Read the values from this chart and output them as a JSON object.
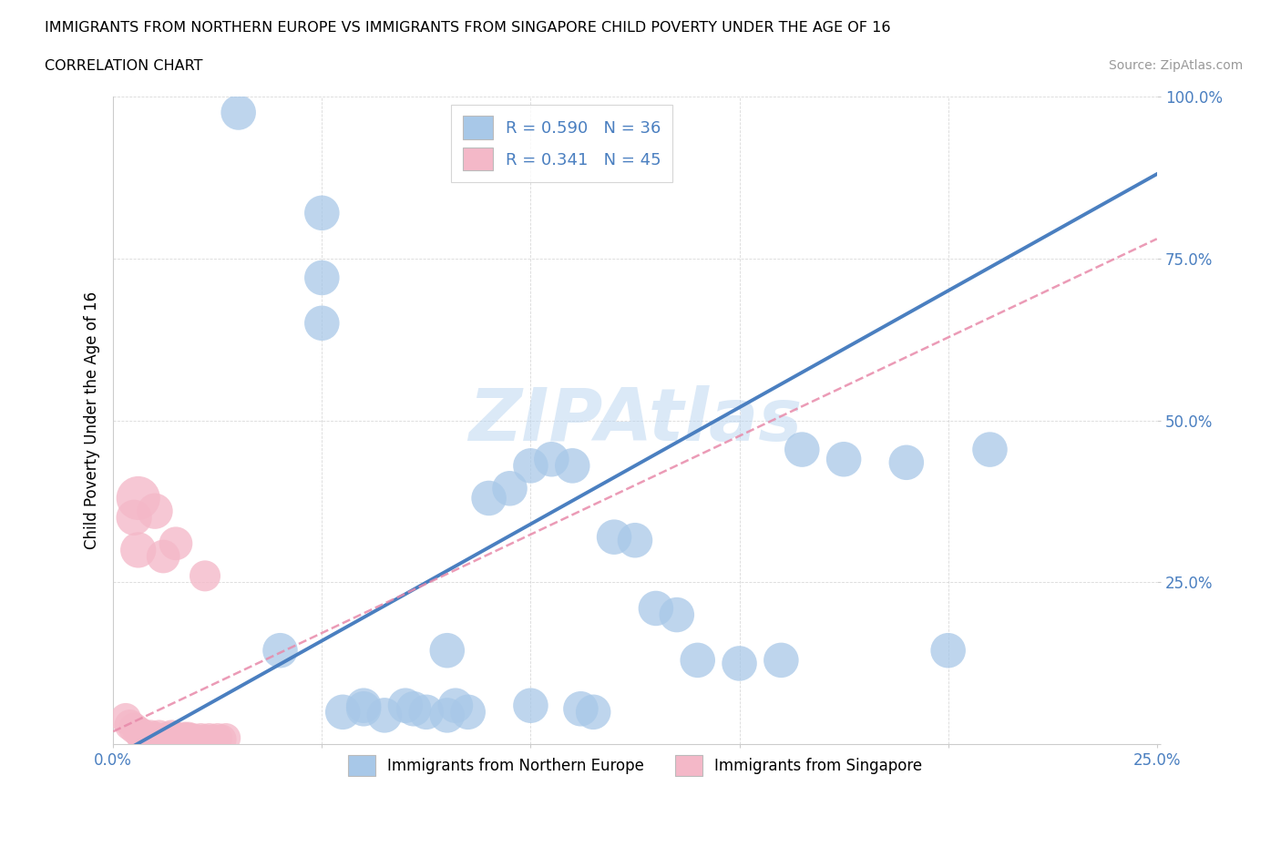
{
  "title": "IMMIGRANTS FROM NORTHERN EUROPE VS IMMIGRANTS FROM SINGAPORE CHILD POVERTY UNDER THE AGE OF 16",
  "subtitle": "CORRELATION CHART",
  "source": "Source: ZipAtlas.com",
  "ylabel": "Child Poverty Under the Age of 16",
  "xlim": [
    0,
    0.25
  ],
  "ylim": [
    0,
    1.0
  ],
  "blue_color": "#a8c8e8",
  "pink_color": "#f4b8c8",
  "blue_line_color": "#4a7fc0",
  "pink_line_color": "#e88aaa",
  "watermark": "ZIPAtlas",
  "legend_R_blue": "0.590",
  "legend_N_blue": "36",
  "legend_R_pink": "0.341",
  "legend_N_pink": "45",
  "blue_x": [
    0.03,
    0.05,
    0.05,
    0.05,
    0.055,
    0.06,
    0.06,
    0.065,
    0.07,
    0.072,
    0.075,
    0.08,
    0.082,
    0.085,
    0.09,
    0.095,
    0.1,
    0.1,
    0.105,
    0.11,
    0.112,
    0.115,
    0.12,
    0.125,
    0.13,
    0.135,
    0.14,
    0.15,
    0.16,
    0.165,
    0.175,
    0.19,
    0.2,
    0.21,
    0.04,
    0.08
  ],
  "blue_y": [
    0.975,
    0.82,
    0.72,
    0.65,
    0.05,
    0.06,
    0.055,
    0.045,
    0.06,
    0.055,
    0.05,
    0.045,
    0.06,
    0.05,
    0.38,
    0.395,
    0.43,
    0.06,
    0.44,
    0.43,
    0.055,
    0.05,
    0.32,
    0.315,
    0.21,
    0.2,
    0.13,
    0.125,
    0.13,
    0.455,
    0.44,
    0.435,
    0.145,
    0.455,
    0.145,
    0.145
  ],
  "blue_sizes": [
    35,
    35,
    35,
    35,
    35,
    35,
    35,
    35,
    35,
    35,
    35,
    35,
    35,
    35,
    35,
    35,
    35,
    35,
    35,
    35,
    35,
    35,
    35,
    35,
    35,
    35,
    35,
    35,
    35,
    35,
    35,
    35,
    35,
    35,
    35,
    35
  ],
  "pink_x": [
    0.003,
    0.004,
    0.005,
    0.005,
    0.006,
    0.006,
    0.007,
    0.007,
    0.008,
    0.008,
    0.009,
    0.009,
    0.01,
    0.01,
    0.011,
    0.011,
    0.012,
    0.012,
    0.013,
    0.013,
    0.014,
    0.014,
    0.015,
    0.015,
    0.016,
    0.016,
    0.017,
    0.017,
    0.018,
    0.018,
    0.019,
    0.019,
    0.02,
    0.021,
    0.022,
    0.023,
    0.024,
    0.025,
    0.026,
    0.027,
    0.006,
    0.01,
    0.015,
    0.022,
    0.012
  ],
  "pink_y": [
    0.04,
    0.03,
    0.025,
    0.35,
    0.02,
    0.3,
    0.016,
    0.01,
    0.012,
    0.008,
    0.015,
    0.008,
    0.01,
    0.012,
    0.008,
    0.015,
    0.01,
    0.008,
    0.012,
    0.01,
    0.008,
    0.015,
    0.01,
    0.012,
    0.008,
    0.01,
    0.012,
    0.008,
    0.01,
    0.012,
    0.008,
    0.01,
    0.008,
    0.01,
    0.008,
    0.01,
    0.008,
    0.01,
    0.008,
    0.01,
    0.38,
    0.36,
    0.31,
    0.26,
    0.29
  ],
  "pink_sizes": [
    60,
    60,
    60,
    80,
    60,
    80,
    60,
    60,
    55,
    55,
    55,
    55,
    55,
    55,
    55,
    55,
    55,
    55,
    55,
    55,
    55,
    55,
    55,
    55,
    55,
    55,
    55,
    55,
    55,
    55,
    55,
    55,
    55,
    55,
    55,
    55,
    55,
    55,
    55,
    55,
    120,
    80,
    70,
    60,
    70
  ]
}
